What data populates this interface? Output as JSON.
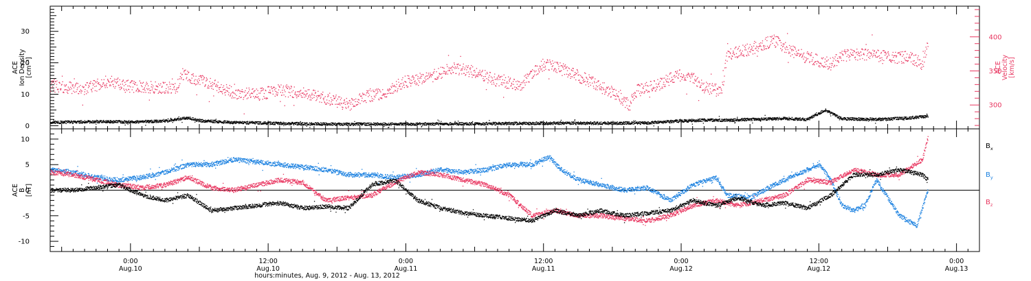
{
  "colors": {
    "black": "#000000",
    "pink": "#e8355f",
    "blue": "#1a80e0"
  },
  "x_axis": {
    "title": "hours:minutes, Aug.  9, 2012 - Aug. 13, 2012",
    "range_hours": [
      -7,
      74
    ],
    "major_ticks": [
      {
        "hour": 0,
        "time": "0:00",
        "day": "Aug.10"
      },
      {
        "hour": 12,
        "time": "12:00",
        "day": "Aug.10"
      },
      {
        "hour": 24,
        "time": "0:00",
        "day": "Aug.11"
      },
      {
        "hour": 36,
        "time": "12:00",
        "day": "Aug.11"
      },
      {
        "hour": 48,
        "time": "0:00",
        "day": "Aug.12"
      },
      {
        "hour": 60,
        "time": "12:00",
        "day": "Aug.12"
      },
      {
        "hour": 72,
        "time": "0:00",
        "day": "Aug.13"
      }
    ]
  },
  "chart_data": [
    {
      "type": "scatter",
      "panel": "top",
      "ylabel_left": [
        "ACE",
        "Ion Density",
        "[cm⁻³]"
      ],
      "ylabel_right": [
        "ACE",
        "Velocity",
        "[km/s]"
      ],
      "ylim_left": [
        -1,
        38
      ],
      "yticks_left": [
        0,
        10,
        20,
        30
      ],
      "ylim_right": [
        265,
        445
      ],
      "yticks_right": [
        300,
        350,
        400
      ],
      "series": [
        {
          "name": "Ion Density",
          "axis": "left",
          "color": "black",
          "x": [
            -7,
            -3,
            0,
            3,
            5,
            6,
            9,
            12,
            15,
            18,
            21,
            24,
            27,
            30,
            33,
            36,
            39,
            42,
            45,
            48,
            50,
            52,
            54,
            57,
            59,
            60.5,
            62,
            65,
            68,
            69.5
          ],
          "y": [
            1.0,
            1.3,
            1.2,
            1.5,
            2.5,
            1.6,
            1.0,
            0.8,
            0.6,
            0.5,
            0.5,
            0.5,
            0.6,
            0.6,
            0.7,
            0.8,
            0.8,
            0.8,
            0.9,
            1.5,
            1.8,
            1.7,
            2.0,
            2.3,
            2.0,
            5.0,
            2.2,
            2.0,
            2.5,
            3.0
          ]
        },
        {
          "name": "Velocity",
          "axis": "right",
          "color": "pink",
          "x": [
            -7,
            -4,
            -2,
            0,
            2,
            4,
            4.5,
            7,
            9,
            11,
            13,
            15,
            17,
            19,
            20,
            22,
            24,
            26,
            28,
            30,
            32,
            34,
            36,
            38,
            40,
            42,
            43.5,
            44,
            46,
            47,
            48,
            49,
            50,
            51.5,
            52,
            54,
            56,
            58,
            60,
            61,
            62,
            64,
            66,
            68,
            69,
            69.5
          ],
          "y": [
            328,
            323,
            335,
            327,
            326,
            325,
            345,
            330,
            318,
            315,
            322,
            318,
            310,
            300,
            310,
            318,
            335,
            340,
            355,
            348,
            335,
            330,
            360,
            350,
            335,
            318,
            300,
            320,
            330,
            338,
            345,
            340,
            325,
            320,
            375,
            382,
            395,
            375,
            365,
            360,
            372,
            375,
            370,
            370,
            360,
            388
          ]
        }
      ]
    },
    {
      "type": "scatter",
      "panel": "bottom",
      "ylabel_left": [
        "ACE",
        "B",
        "[nT]"
      ],
      "ylim": [
        -12,
        12
      ],
      "yticks": [
        -10,
        -5,
        0,
        5,
        10
      ],
      "zero_line": true,
      "series": [
        {
          "name": "Bx",
          "legend_main": "B",
          "legend_sub": "x",
          "color": "black",
          "x": [
            -7,
            -5,
            -3,
            -1,
            1,
            3,
            5,
            7,
            9,
            11,
            13,
            15,
            17,
            19,
            21,
            23,
            25,
            27,
            29,
            31,
            33,
            35,
            37,
            39,
            41,
            43,
            45,
            47,
            49,
            51,
            53,
            55,
            57,
            59,
            61,
            63,
            65,
            67,
            69,
            69.5
          ],
          "y": [
            0,
            0,
            0.5,
            1,
            -1,
            -2,
            -1,
            -4,
            -3.5,
            -3,
            -2.5,
            -3.5,
            -3.2,
            -3.5,
            1,
            2,
            -2,
            -3.5,
            -4.5,
            -5,
            -5.5,
            -6,
            -4,
            -5,
            -4,
            -5,
            -4.5,
            -4,
            -2,
            -3,
            -1.5,
            -3,
            -2.5,
            -3.5,
            -1,
            3,
            3,
            4,
            3,
            2
          ]
        },
        {
          "name": "By",
          "legend_main": "B",
          "legend_sub": "y",
          "color": "blue",
          "x": [
            -7,
            -5,
            -3,
            -1,
            1,
            3,
            5,
            7,
            9,
            11,
            13,
            15,
            17,
            19,
            21,
            23,
            25,
            27,
            29,
            31,
            33,
            35,
            36.5,
            37.5,
            39,
            41,
            43,
            45,
            47,
            49,
            51,
            52,
            54,
            56,
            58,
            60,
            61,
            62,
            63,
            64,
            65,
            67,
            68.5,
            69.5
          ],
          "y": [
            4,
            3.5,
            2.5,
            2,
            2.5,
            3.5,
            5,
            5,
            6,
            5.5,
            5,
            4.5,
            4,
            3,
            3,
            2.5,
            3,
            4,
            3.5,
            4,
            5,
            5,
            6.5,
            4,
            2,
            1,
            0,
            0.5,
            -2,
            1,
            2.5,
            -1,
            -1.5,
            1,
            3,
            5,
            2,
            -3,
            -4,
            -3,
            2,
            -5,
            -7,
            0
          ]
        },
        {
          "name": "Bz",
          "legend_main": "B",
          "legend_sub": "z",
          "color": "pink",
          "x": [
            -7,
            -5,
            -3,
            -1,
            1,
            3,
            5,
            7,
            9,
            11,
            13,
            15,
            17,
            19,
            21,
            23,
            25,
            27,
            29,
            31,
            33,
            35,
            37,
            39,
            41,
            43,
            45,
            47,
            49,
            51,
            53,
            55,
            57,
            59,
            61,
            63,
            65,
            67,
            69,
            69.5
          ],
          "y": [
            3.5,
            3,
            2,
            1,
            0.5,
            1,
            2.5,
            0.5,
            0,
            1,
            2,
            1.5,
            -2,
            -1.5,
            -1,
            1.5,
            3.5,
            3,
            2,
            1,
            -1,
            -5,
            -4,
            -5,
            -5,
            -5.5,
            -6,
            -5,
            -3,
            -2,
            -3,
            -2,
            -1,
            2,
            1.5,
            4,
            3,
            3,
            6,
            10.5
          ]
        }
      ]
    }
  ]
}
